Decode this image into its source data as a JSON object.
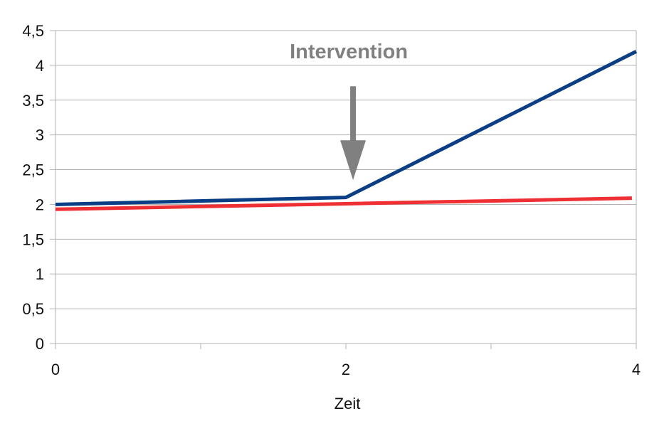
{
  "chart_data": {
    "type": "line",
    "title": "",
    "xlabel": "Zeit",
    "ylabel": "",
    "xlim": [
      0,
      4
    ],
    "ylim": [
      0,
      4.5
    ],
    "x_ticks": [
      0,
      2,
      4
    ],
    "x_tick_labels": [
      "0",
      "2",
      "4"
    ],
    "x_minor_ticks": [
      1,
      3
    ],
    "y_ticks": [
      0,
      0.5,
      1,
      1.5,
      2,
      2.5,
      3,
      3.5,
      4,
      4.5
    ],
    "y_tick_labels": [
      "0",
      "0,5",
      "1",
      "1,5",
      "2",
      "2,5",
      "3",
      "3,5",
      "4",
      "4,5"
    ],
    "grid": true,
    "legend": "none",
    "series": [
      {
        "color": "#0b3f85",
        "x": [
          0,
          2,
          4
        ],
        "values": [
          2.0,
          2.1,
          4.2
        ]
      },
      {
        "color": "#ee3035",
        "x": [
          0,
          2,
          3.97
        ],
        "values": [
          1.93,
          2.01,
          2.09
        ]
      }
    ],
    "annotations": [
      {
        "text": "Intervention",
        "x": 2.02,
        "y": 4.1,
        "arrow_from_y": 3.7,
        "arrow_to_y": 2.35,
        "color": "#808080"
      }
    ]
  }
}
